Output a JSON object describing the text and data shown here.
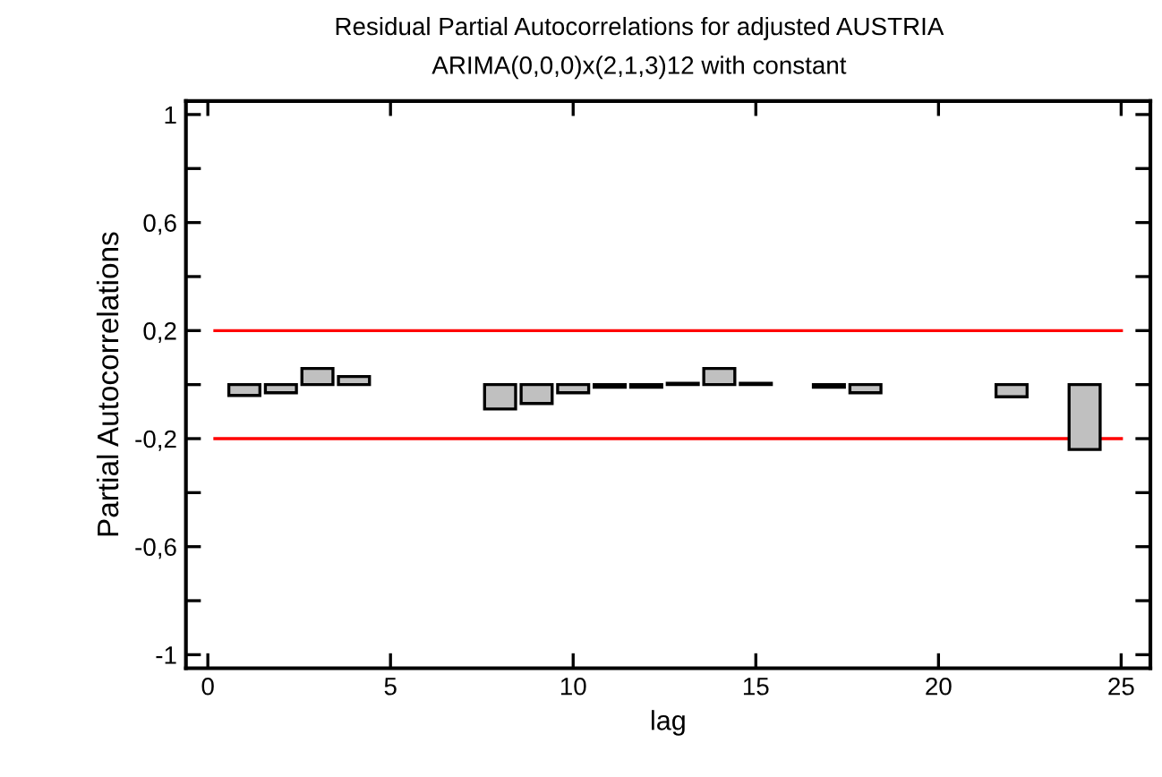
{
  "chart_data": {
    "type": "bar",
    "title": "Residual Partial Autocorrelations for adjusted AUSTRIA",
    "subtitle": "ARIMA(0,0,0)x(2,1,3)12 with constant",
    "xlabel": "lag",
    "ylabel": "Partial Autocorrelations",
    "x": [
      1,
      2,
      3,
      4,
      8,
      9,
      10,
      11,
      12,
      13,
      14,
      15,
      17,
      18,
      22,
      24
    ],
    "values": [
      -0.04,
      -0.03,
      0.06,
      0.03,
      -0.09,
      -0.07,
      -0.03,
      -0.01,
      -0.01,
      0.005,
      0.06,
      0.005,
      -0.01,
      -0.03,
      -0.045,
      -0.24
    ],
    "color": "#c0c0c0",
    "xlim": [
      -0.6,
      25.8
    ],
    "xticks": [
      0,
      5,
      10,
      15,
      20,
      25
    ],
    "ylim": [
      -1.05,
      1.05
    ],
    "yticks": [
      {
        "value": -1,
        "label": "-1"
      },
      {
        "value": -0.8,
        "label": null
      },
      {
        "value": -0.6,
        "label": "-0,6"
      },
      {
        "value": -0.4,
        "label": null
      },
      {
        "value": -0.2,
        "label": "-0,2"
      },
      {
        "value": 0,
        "label": null
      },
      {
        "value": 0.2,
        "label": "0,2"
      },
      {
        "value": 0.4,
        "label": null
      },
      {
        "value": 0.6,
        "label": "0,6"
      },
      {
        "value": 0.8,
        "label": null
      },
      {
        "value": 1,
        "label": "1"
      }
    ],
    "ref_lines": [
      {
        "axis": "y",
        "value": 0.2,
        "color": "#ff0000"
      },
      {
        "axis": "y",
        "value": -0.2,
        "color": "#ff0000"
      }
    ],
    "grid": false
  }
}
